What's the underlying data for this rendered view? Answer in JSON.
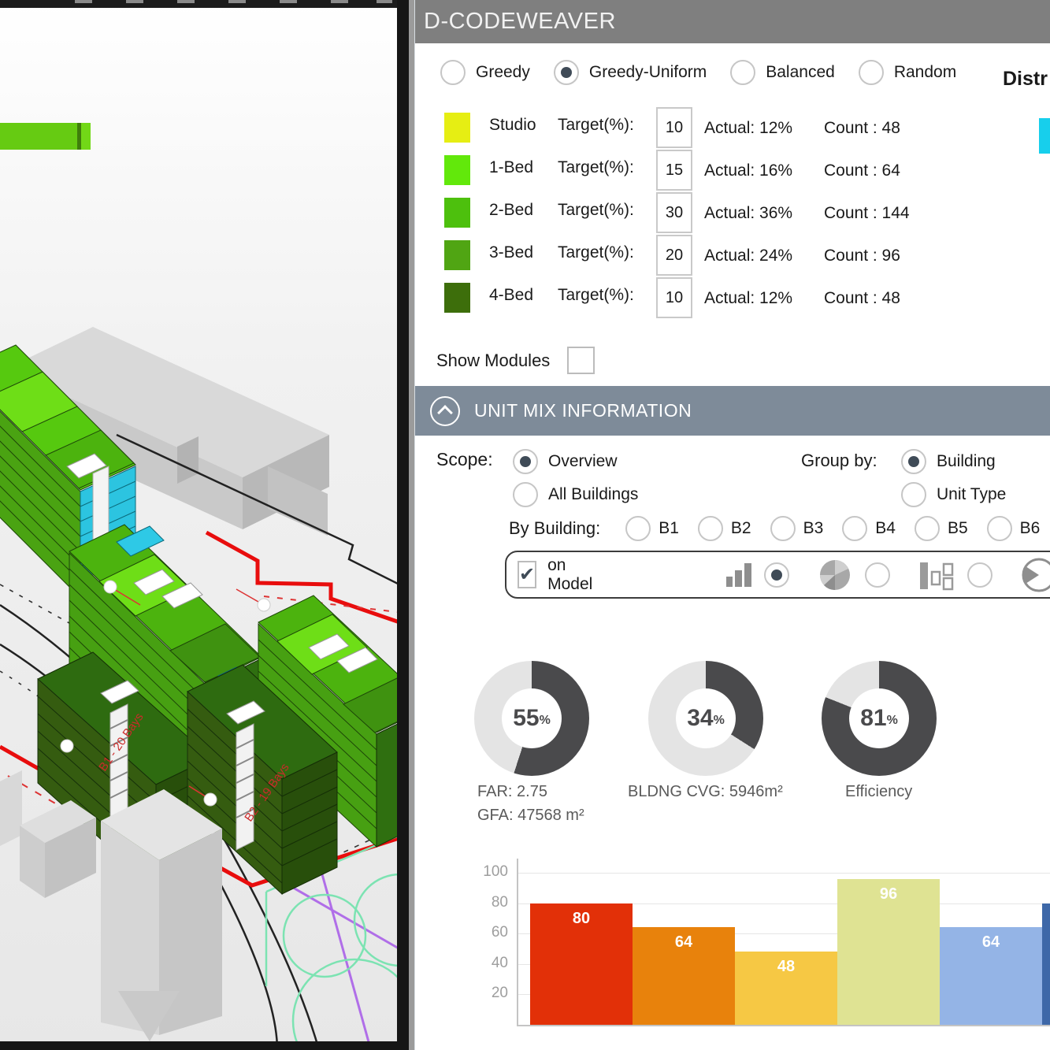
{
  "window": {
    "title": "D-CODEWEAVER"
  },
  "strategy": {
    "options": [
      "Greedy",
      "Greedy-Uniform",
      "Balanced",
      "Random"
    ],
    "selected": "Greedy-Uniform"
  },
  "distribution": {
    "label": "Distr",
    "legend_swatch_color": "#17cfec"
  },
  "unit_mix": {
    "target_label": "Target(%):",
    "rows": [
      {
        "name": "Studio",
        "color": "#e6ee13",
        "target": "10",
        "actual": "Actual: 12%",
        "count": "Count : 48"
      },
      {
        "name": "1-Bed",
        "color": "#62e80b",
        "target": "15",
        "actual": "Actual: 16%",
        "count": "Count : 64"
      },
      {
        "name": "2-Bed",
        "color": "#4dc00d",
        "target": "30",
        "actual": "Actual: 36%",
        "count": "Count : 144"
      },
      {
        "name": "3-Bed",
        "color": "#50a513",
        "target": "20",
        "actual": "Actual: 24%",
        "count": "Count : 96"
      },
      {
        "name": "4-Bed",
        "color": "#3d6e0b",
        "target": "10",
        "actual": "Actual: 12%",
        "count": "Count : 48"
      }
    ]
  },
  "show_modules": {
    "label": "Show Modules",
    "checked": false
  },
  "section_header": {
    "title": "UNIT MIX INFORMATION"
  },
  "scope": {
    "label": "Scope:",
    "options": [
      "Overview",
      "All Buildings"
    ],
    "selected": "Overview"
  },
  "group_by": {
    "label": "Group by:",
    "options": [
      "Building",
      "Unit Type"
    ],
    "selected": "Building"
  },
  "by_building": {
    "label": "By Building:",
    "options": [
      "B1",
      "B2",
      "B3",
      "B4",
      "B5",
      "B6"
    ],
    "selected": ""
  },
  "model_toolbar": {
    "on_model_label": "on Model",
    "checked": true,
    "chart_options": [
      "bar-chart",
      "pie-chart",
      "stacked-columns",
      "wedge-pie"
    ],
    "selected": "bar-chart"
  },
  "chart_data": [
    {
      "type": "donut",
      "value": 55,
      "unit": "%",
      "labels": [
        "FAR: 2.75",
        "GFA: 47568 m²"
      ],
      "fill": "#4a4a4c",
      "rest": "#e4e4e4"
    },
    {
      "type": "donut",
      "value": 34,
      "unit": "%",
      "labels": [
        "BLDNG CVG: 5946m²"
      ],
      "fill": "#4a4a4c",
      "rest": "#e4e4e4"
    },
    {
      "type": "donut",
      "value": 81,
      "unit": "%",
      "labels": [
        "Efficiency"
      ],
      "fill": "#4a4a4c",
      "rest": "#e4e4e4"
    },
    {
      "type": "bar",
      "values": [
        80,
        64,
        48,
        96,
        64,
        80
      ],
      "bar_labels": [
        "80",
        "64",
        "48",
        "96",
        "64",
        ""
      ],
      "colors": [
        "#e23008",
        "#e8820c",
        "#f6c844",
        "#dfe393",
        "#94b4e6",
        "#3e68a8"
      ],
      "yticks": [
        20,
        40,
        60,
        80,
        100
      ],
      "ylim": [
        0,
        100
      ],
      "grid": true,
      "legend": "none"
    }
  ],
  "viewport": {
    "building_labels": [
      "B1 - 20 Bays",
      "B2 - 19 Bays"
    ]
  }
}
